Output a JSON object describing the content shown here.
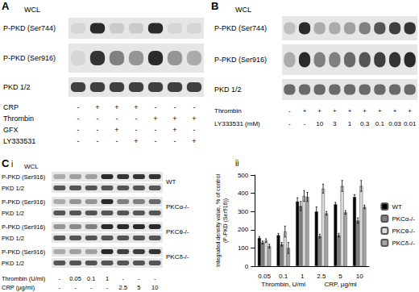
{
  "panels": {
    "A": {
      "label": "A",
      "wcl": "WCL",
      "rows": [
        {
          "label": "P-PKD (Ser744)",
          "bands": [
            0.1,
            0.9,
            0.15,
            0.15,
            0.9,
            0.1,
            0.1
          ]
        },
        {
          "label": "P-PKD (Ser916)",
          "bands": [
            0.1,
            0.85,
            0.5,
            0.4,
            0.9,
            0.4,
            0.3
          ]
        },
        {
          "label": "PKD 1/2",
          "bands": [
            0.8,
            0.8,
            0.8,
            0.8,
            0.8,
            0.8,
            0.8
          ]
        }
      ],
      "conditions": [
        {
          "label": "CRP",
          "values": [
            "-",
            "+",
            "+",
            "+",
            "-",
            "-",
            "-"
          ]
        },
        {
          "label": "Thrombin",
          "values": [
            "-",
            "-",
            "-",
            "-",
            "+",
            "+",
            "+"
          ]
        },
        {
          "label": "GFX",
          "values": [
            "-",
            "-",
            "+",
            "-",
            "-",
            "+",
            "-"
          ]
        },
        {
          "label": "LY333531",
          "values": [
            "-",
            "-",
            "-",
            "+",
            "-",
            "-",
            "+"
          ]
        }
      ]
    },
    "B": {
      "label": "B",
      "wcl": "WCL",
      "rows": [
        {
          "label": "P-PKD (Ser744)",
          "bands": [
            0.2,
            0.9,
            0.3,
            0.3,
            0.35,
            0.5,
            0.7,
            0.8,
            0.85
          ]
        },
        {
          "label": "P-PKD (Ser916)",
          "bands": [
            0.3,
            0.9,
            0.5,
            0.5,
            0.6,
            0.7,
            0.8,
            0.85,
            0.9
          ]
        },
        {
          "label": "PKD 1/2",
          "bands": [
            0.6,
            0.6,
            0.6,
            0.6,
            0.6,
            0.6,
            0.6,
            0.6,
            0.6
          ]
        }
      ],
      "conditions": [
        {
          "label": "Thrombin",
          "values": [
            "-",
            "+",
            "+",
            "+",
            "+",
            "+",
            "+",
            "+",
            "+"
          ]
        },
        {
          "label": "LY333531 (mM)",
          "values": [
            "-",
            "-",
            "10",
            "3",
            "1",
            "0.3",
            "0.1",
            "0.03",
            "0.01"
          ]
        }
      ]
    },
    "Ci": {
      "label": "C",
      "sublabel": "i",
      "wcl": "WCL",
      "groups": [
        {
          "name": "WT",
          "rows": [
            {
              "label": "P-PKD (Ser916)",
              "bands": [
                0.3,
                0.35,
                0.35,
                0.9,
                0.85,
                0.85,
                0.85
              ]
            },
            {
              "label": "PKD 1/2",
              "bands": [
                0.7,
                0.7,
                0.7,
                0.7,
                0.7,
                0.7,
                0.7
              ]
            }
          ]
        },
        {
          "name": "PKCα-/-",
          "rows": [
            {
              "label": "P-PKD (Ser916)",
              "bands": [
                0.3,
                0.4,
                0.4,
                0.9,
                0.5,
                0.5,
                0.6
              ]
            },
            {
              "label": "PKD 1/2",
              "bands": [
                0.7,
                0.7,
                0.7,
                0.7,
                0.7,
                0.7,
                0.7
              ]
            }
          ]
        },
        {
          "name": "PKCθ-/-",
          "rows": [
            {
              "label": "P-PKD (Ser916)",
              "bands": [
                0.4,
                0.45,
                0.5,
                0.9,
                0.9,
                0.9,
                0.9
              ]
            },
            {
              "label": "PKD 1/2",
              "bands": [
                0.7,
                0.7,
                0.7,
                0.7,
                0.7,
                0.7,
                0.7
              ]
            }
          ]
        },
        {
          "name": "PKCδ-/-",
          "rows": [
            {
              "label": "P-PKD (Ser916)",
              "bands": [
                0.3,
                0.35,
                0.35,
                0.9,
                0.8,
                0.8,
                0.85
              ]
            },
            {
              "label": "PKD 1/2",
              "bands": [
                0.7,
                0.7,
                0.7,
                0.7,
                0.7,
                0.7,
                0.7
              ]
            }
          ]
        }
      ],
      "conditions": [
        {
          "label": "Thrombin (U/ml)",
          "values": [
            "-",
            "0.05",
            "0.1",
            "1",
            "-",
            "-",
            "-"
          ]
        },
        {
          "label": "CRP (µg/ml)",
          "values": [
            "-",
            "-",
            "-",
            "-",
            "2.5",
            "5",
            "10"
          ]
        }
      ]
    },
    "Cii": {
      "sublabel": "ii"
    }
  },
  "chart_data": {
    "type": "bar",
    "categories": [
      "0.05",
      "0.1",
      "1",
      "2.5",
      "5",
      "10"
    ],
    "category_groups": [
      {
        "label": "Thrombin, U/ml",
        "categories": [
          "0.05",
          "0.1",
          "1"
        ]
      },
      {
        "label": "CRP, µg/ml",
        "categories": [
          "2.5",
          "5",
          "10"
        ]
      }
    ],
    "y_label": "Integrated density value, % of control\n(P-PKD (Ser916))",
    "ylim": [
      0,
      500
    ],
    "yticks": [
      0,
      100,
      200,
      300,
      400,
      500
    ],
    "legend": "right",
    "grid": false,
    "series": [
      {
        "name": "WT",
        "color": "#000000",
        "values": [
          155,
          170,
          355,
          300,
          340,
          380
        ],
        "errors": [
          8,
          10,
          20,
          25,
          10,
          12
        ]
      },
      {
        "name": "PKCα-/-",
        "color": "#808080",
        "values": [
          130,
          120,
          330,
          165,
          170,
          250
        ],
        "errors": [
          8,
          10,
          25,
          10,
          10,
          15
        ]
      },
      {
        "name": "PKCθ-/-",
        "color": "#d9d9d9",
        "values": [
          140,
          190,
          385,
          425,
          440,
          440
        ],
        "errors": [
          10,
          30,
          30,
          25,
          30,
          30
        ]
      },
      {
        "name": "PKCδ-/-",
        "color": "#a6a6a6",
        "values": [
          110,
          100,
          380,
          290,
          295,
          325
        ],
        "errors": [
          10,
          30,
          25,
          10,
          10,
          10
        ]
      }
    ]
  }
}
